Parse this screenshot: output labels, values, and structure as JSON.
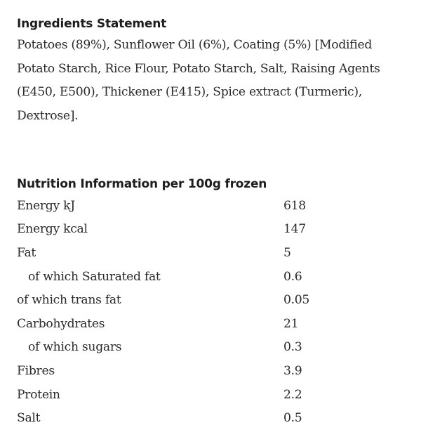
{
  "ingredients": {
    "heading": "Ingredients Statement",
    "text": "Potatoes (89%), Sunflower Oil (6%), Coating (5%) [Modified Potato Starch, Rice Flour, Potato Starch, Salt, Raising Agents (E450, E500), Thickener (E415), Spice extract (Turmeric), Dextrose]."
  },
  "nutrition": {
    "heading": "Nutrition Information per 100g frozen",
    "rows": [
      {
        "name": "Energy kJ",
        "value": "618"
      },
      {
        "name": "Energy kcal",
        "value": "147"
      },
      {
        "name": "Fat",
        "value": "5"
      },
      {
        "name": "of which Saturated fat",
        "value": "0.6"
      },
      {
        "name": "of which trans fat",
        "value": "0.05"
      },
      {
        "name": "Carbohydrates",
        "value": "21"
      },
      {
        "name": "of which sugars",
        "value": "0.3"
      },
      {
        "name": "Fibres",
        "value": "3.9"
      },
      {
        "name": "Protein",
        "value": "2.2"
      },
      {
        "name": "Salt",
        "value": "0.5"
      }
    ]
  }
}
